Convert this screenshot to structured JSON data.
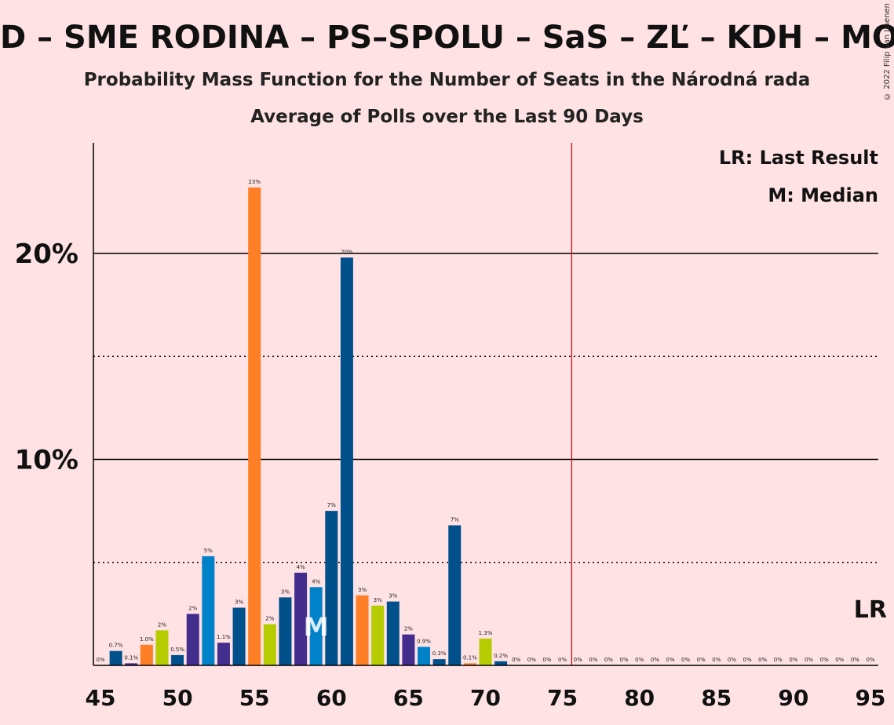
{
  "title": "D – SME RODINA – PS–SPOLU – SaS – ZĽ – KDH – MOS",
  "subtitle_1": "Probability Mass Function for the Number of Seats in the Národná rada",
  "subtitle_2": "Average of Polls over the Last 90 Days",
  "copyright": "© 2022 Filip van Laenen",
  "legend": {
    "lr": "LR: Last Result",
    "median": "M: Median"
  },
  "colors": {
    "background": "#FFE2E4",
    "last_result_line": "#CC0000",
    "party_palette": [
      "#00508C",
      "#432E8E",
      "#FF7F27",
      "#B5CC00",
      "#0082C8"
    ]
  },
  "chart_data": {
    "type": "bar",
    "x": [
      45,
      46,
      47,
      48,
      49,
      50,
      51,
      52,
      53,
      54,
      55,
      56,
      57,
      58,
      59,
      60,
      61,
      62,
      63,
      64,
      65,
      66,
      67,
      68,
      69,
      70,
      71,
      72,
      73,
      74,
      75,
      76,
      77,
      78,
      79,
      80,
      81,
      82,
      83,
      84,
      85,
      86,
      87,
      88,
      89,
      90,
      91,
      92,
      93,
      94,
      95
    ],
    "values": [
      0,
      0.7,
      0.1,
      1.0,
      1.7,
      0.5,
      2.5,
      5.3,
      1.1,
      2.8,
      23.2,
      2.0,
      3.3,
      4.5,
      3.8,
      7.5,
      19.8,
      3.4,
      2.9,
      3.1,
      1.5,
      0.9,
      0.3,
      6.8,
      0.1,
      1.3,
      0.2,
      0,
      0,
      0,
      0,
      0,
      0,
      0,
      0,
      0,
      0,
      0,
      0,
      0,
      0,
      0,
      0,
      0,
      0,
      0,
      0,
      0,
      0,
      0,
      0
    ],
    "labels": [
      "0%",
      "0.7%",
      "0.1%",
      "1.0%",
      "2%",
      "0.5%",
      "2%",
      "5%",
      "1.1%",
      "3%",
      "23%",
      "2%",
      "3%",
      "4%",
      "4%",
      "7%",
      "20%",
      "3%",
      "3%",
      "3%",
      "2%",
      "0.9%",
      "0.3%",
      "7%",
      "0.1%",
      "1.3%",
      "0.2%",
      "0%",
      "0%",
      "0%",
      "0%",
      "0%",
      "0%",
      "0%",
      "0%",
      "0%",
      "0%",
      "0%",
      "0%",
      "0%",
      "0%",
      "0%",
      "0%",
      "0%",
      "0%",
      "0%",
      "0%",
      "0%",
      "0%",
      "0%",
      "0%"
    ],
    "colors": [
      "#00508C",
      "#00508C",
      "#432E8E",
      "#FF7F27",
      "#B5CC00",
      "#00508C",
      "#432E8E",
      "#0082C8",
      "#432E8E",
      "#00508C",
      "#FF7F27",
      "#B5CC00",
      "#00508C",
      "#432E8E",
      "#0082C8",
      "#00508C",
      "#00508C",
      "#FF7F27",
      "#B5CC00",
      "#00508C",
      "#432E8E",
      "#0082C8",
      "#00508C",
      "#00508C",
      "#FF7F27",
      "#B5CC00",
      "#00508C",
      "#00508C",
      "#00508C",
      "#00508C",
      "#00508C",
      "#00508C",
      "#00508C",
      "#00508C",
      "#00508C",
      "#00508C",
      "#00508C",
      "#00508C",
      "#00508C",
      "#00508C",
      "#00508C",
      "#00508C",
      "#00508C",
      "#00508C",
      "#00508C",
      "#00508C",
      "#00508C",
      "#00508C",
      "#00508C",
      "#00508C",
      "#00508C"
    ],
    "x_ticks": [
      "45",
      "50",
      "55",
      "60",
      "65",
      "70",
      "75",
      "80",
      "85",
      "90",
      "95"
    ],
    "y_ticks": [
      "10%",
      "20%"
    ],
    "ylim": [
      0,
      25
    ],
    "gridlines_solid": [
      10,
      20
    ],
    "gridlines_dotted": [
      5,
      15
    ],
    "median": 59,
    "median_label": "M",
    "last_result": 76,
    "last_result_label": "LR"
  }
}
